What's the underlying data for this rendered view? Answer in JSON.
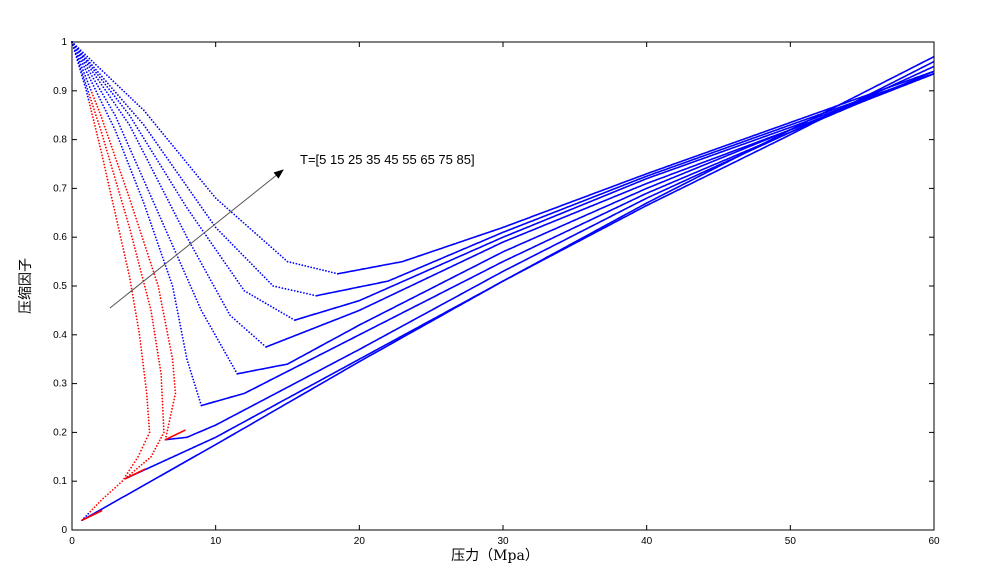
{
  "chart_data": {
    "type": "scatter",
    "xlabel": "压力（Mpa）",
    "ylabel": "压缩因子",
    "xlim": [
      0,
      60
    ],
    "ylim": [
      0,
      1
    ],
    "xticks": [
      "0",
      "10",
      "20",
      "30",
      "40",
      "50",
      "60"
    ],
    "yticks": [
      "0",
      "0.1",
      "0.2",
      "0.3",
      "0.4",
      "0.5",
      "0.6",
      "0.7",
      "0.8",
      "0.9",
      "1"
    ],
    "annotation": "T=[5 15 25 35 45 55 65 75 85]",
    "colors": {
      "vapor": "#0000ff",
      "liquid": "#ff0000",
      "axis": "#000000",
      "arrow": "#555555"
    },
    "grid": false,
    "series": [
      {
        "T": 5,
        "minimum": [
          0.7,
          0.02
        ],
        "liquid_start": 0.7,
        "branch_end": [
          60,
          0.97
        ],
        "points": [
          [
            0,
            1
          ],
          [
            1,
            0.9
          ],
          [
            2,
            0.78
          ],
          [
            3,
            0.65
          ],
          [
            4,
            0.52
          ],
          [
            4.7,
            0.4
          ],
          [
            5.2,
            0.28
          ],
          [
            5.4,
            0.2
          ],
          [
            4.6,
            0.15
          ],
          [
            3.5,
            0.1
          ],
          [
            2,
            0.06
          ],
          [
            0.7,
            0.02
          ],
          [
            10,
            0.175
          ],
          [
            20,
            0.345
          ],
          [
            30,
            0.51
          ],
          [
            40,
            0.67
          ],
          [
            50,
            0.82
          ],
          [
            60,
            0.97
          ]
        ]
      },
      {
        "T": 15,
        "minimum": [
          3.7,
          0.105
        ],
        "liquid_start": 3.6,
        "branch_end": [
          60,
          0.96
        ],
        "points": [
          [
            0,
            1
          ],
          [
            2,
            0.82
          ],
          [
            4,
            0.62
          ],
          [
            5.5,
            0.45
          ],
          [
            6.2,
            0.32
          ],
          [
            6.4,
            0.2
          ],
          [
            5.5,
            0.15
          ],
          [
            3.7,
            0.105
          ],
          [
            10,
            0.19
          ],
          [
            20,
            0.35
          ],
          [
            30,
            0.51
          ],
          [
            40,
            0.665
          ],
          [
            50,
            0.81
          ],
          [
            60,
            0.96
          ]
        ]
      },
      {
        "T": 25,
        "minimum": [
          6.5,
          0.185
        ],
        "liquid_start": 6.2,
        "branch_end": [
          60,
          0.95
        ],
        "points": [
          [
            0,
            1
          ],
          [
            2,
            0.85
          ],
          [
            4,
            0.68
          ],
          [
            6,
            0.5
          ],
          [
            7,
            0.35
          ],
          [
            7.2,
            0.28
          ],
          [
            6.5,
            0.185
          ],
          [
            8,
            0.19
          ],
          [
            10,
            0.215
          ],
          [
            20,
            0.37
          ],
          [
            30,
            0.53
          ],
          [
            40,
            0.68
          ],
          [
            50,
            0.815
          ],
          [
            60,
            0.95
          ]
        ]
      },
      {
        "T": 35,
        "minimum": [
          9,
          0.255
        ],
        "liquid_start": null,
        "branch_end": [
          60,
          0.94
        ],
        "points": [
          [
            0,
            1
          ],
          [
            3,
            0.82
          ],
          [
            5,
            0.67
          ],
          [
            7,
            0.5
          ],
          [
            8,
            0.35
          ],
          [
            9,
            0.255
          ],
          [
            12,
            0.28
          ],
          [
            20,
            0.4
          ],
          [
            30,
            0.55
          ],
          [
            40,
            0.69
          ],
          [
            50,
            0.815
          ],
          [
            60,
            0.94
          ]
        ]
      },
      {
        "T": 45,
        "minimum": [
          11.5,
          0.32
        ],
        "liquid_start": null,
        "branch_end": [
          60,
          0.935
        ],
        "points": [
          [
            0,
            1
          ],
          [
            3,
            0.85
          ],
          [
            6,
            0.65
          ],
          [
            9,
            0.45
          ],
          [
            11.5,
            0.32
          ],
          [
            15,
            0.34
          ],
          [
            20,
            0.42
          ],
          [
            30,
            0.57
          ],
          [
            40,
            0.7
          ],
          [
            50,
            0.82
          ],
          [
            60,
            0.935
          ]
        ]
      },
      {
        "T": 55,
        "minimum": [
          13.5,
          0.375
        ],
        "liquid_start": null,
        "branch_end": [
          60,
          0.935
        ],
        "points": [
          [
            0,
            1
          ],
          [
            4,
            0.83
          ],
          [
            8,
            0.6
          ],
          [
            11,
            0.44
          ],
          [
            13.5,
            0.375
          ],
          [
            20,
            0.45
          ],
          [
            30,
            0.59
          ],
          [
            40,
            0.71
          ],
          [
            50,
            0.82
          ],
          [
            60,
            0.935
          ]
        ]
      },
      {
        "T": 65,
        "minimum": [
          15.5,
          0.43
        ],
        "liquid_start": null,
        "branch_end": [
          60,
          0.935
        ],
        "points": [
          [
            0,
            1
          ],
          [
            4,
            0.85
          ],
          [
            8,
            0.66
          ],
          [
            12,
            0.49
          ],
          [
            15.5,
            0.43
          ],
          [
            20,
            0.47
          ],
          [
            30,
            0.6
          ],
          [
            40,
            0.72
          ],
          [
            50,
            0.825
          ],
          [
            60,
            0.935
          ]
        ]
      },
      {
        "T": 75,
        "minimum": [
          17,
          0.48
        ],
        "liquid_start": null,
        "branch_end": [
          60,
          0.935
        ],
        "points": [
          [
            0,
            1
          ],
          [
            5,
            0.83
          ],
          [
            10,
            0.62
          ],
          [
            14,
            0.5
          ],
          [
            17,
            0.48
          ],
          [
            22,
            0.51
          ],
          [
            30,
            0.61
          ],
          [
            40,
            0.725
          ],
          [
            50,
            0.83
          ],
          [
            60,
            0.935
          ]
        ]
      },
      {
        "T": 85,
        "minimum": [
          18.5,
          0.525
        ],
        "liquid_start": null,
        "branch_end": [
          60,
          0.94
        ],
        "points": [
          [
            0,
            1
          ],
          [
            5,
            0.86
          ],
          [
            10,
            0.68
          ],
          [
            15,
            0.55
          ],
          [
            18.5,
            0.525
          ],
          [
            23,
            0.55
          ],
          [
            30,
            0.62
          ],
          [
            40,
            0.73
          ],
          [
            50,
            0.835
          ],
          [
            60,
            0.94
          ]
        ]
      }
    ]
  }
}
